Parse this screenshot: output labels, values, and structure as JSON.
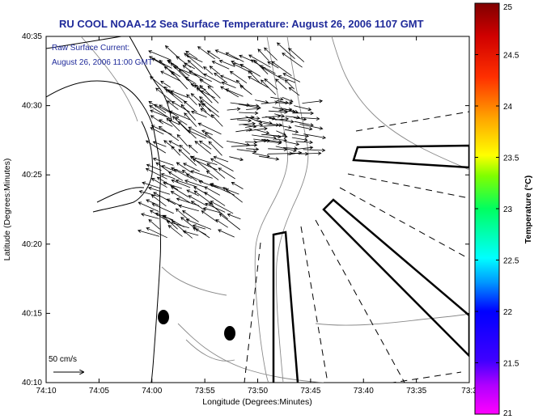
{
  "title": "RU COOL  NOAA-12  Sea Surface Temperature:  August 26, 2006 1107 GMT",
  "inset": {
    "line1": "Raw Surface Current:",
    "line2": "August 26, 2006 11:00 GMT"
  },
  "scale": {
    "label": "50 cm/s"
  },
  "axes": {
    "xlabel": "Longitude (Degrees:Minutes)",
    "ylabel": "Latitude (Degrees:Minutes)",
    "xticks": [
      "74:10",
      "74:05",
      "74:00",
      "73:55",
      "73:50",
      "73:45",
      "73:40",
      "73:35",
      "73:3"
    ],
    "yticks": [
      "40:35",
      "40:30",
      "40:25",
      "40:20",
      "40:15",
      "40:10"
    ]
  },
  "colorbar": {
    "label": "Temperature (°C)",
    "ticks": [
      "25",
      "24.5",
      "24",
      "23.5",
      "23",
      "22.5",
      "22",
      "21.5",
      "21"
    ],
    "min": 21,
    "max": 25,
    "colors": [
      "#ff00ff",
      "#9400d3",
      "#0000ff",
      "#0096ff",
      "#00ffff",
      "#00ff80",
      "#80ff00",
      "#ffff00",
      "#ffa500",
      "#ff4500",
      "#ff0000",
      "#b40000",
      "#800000"
    ]
  }
}
